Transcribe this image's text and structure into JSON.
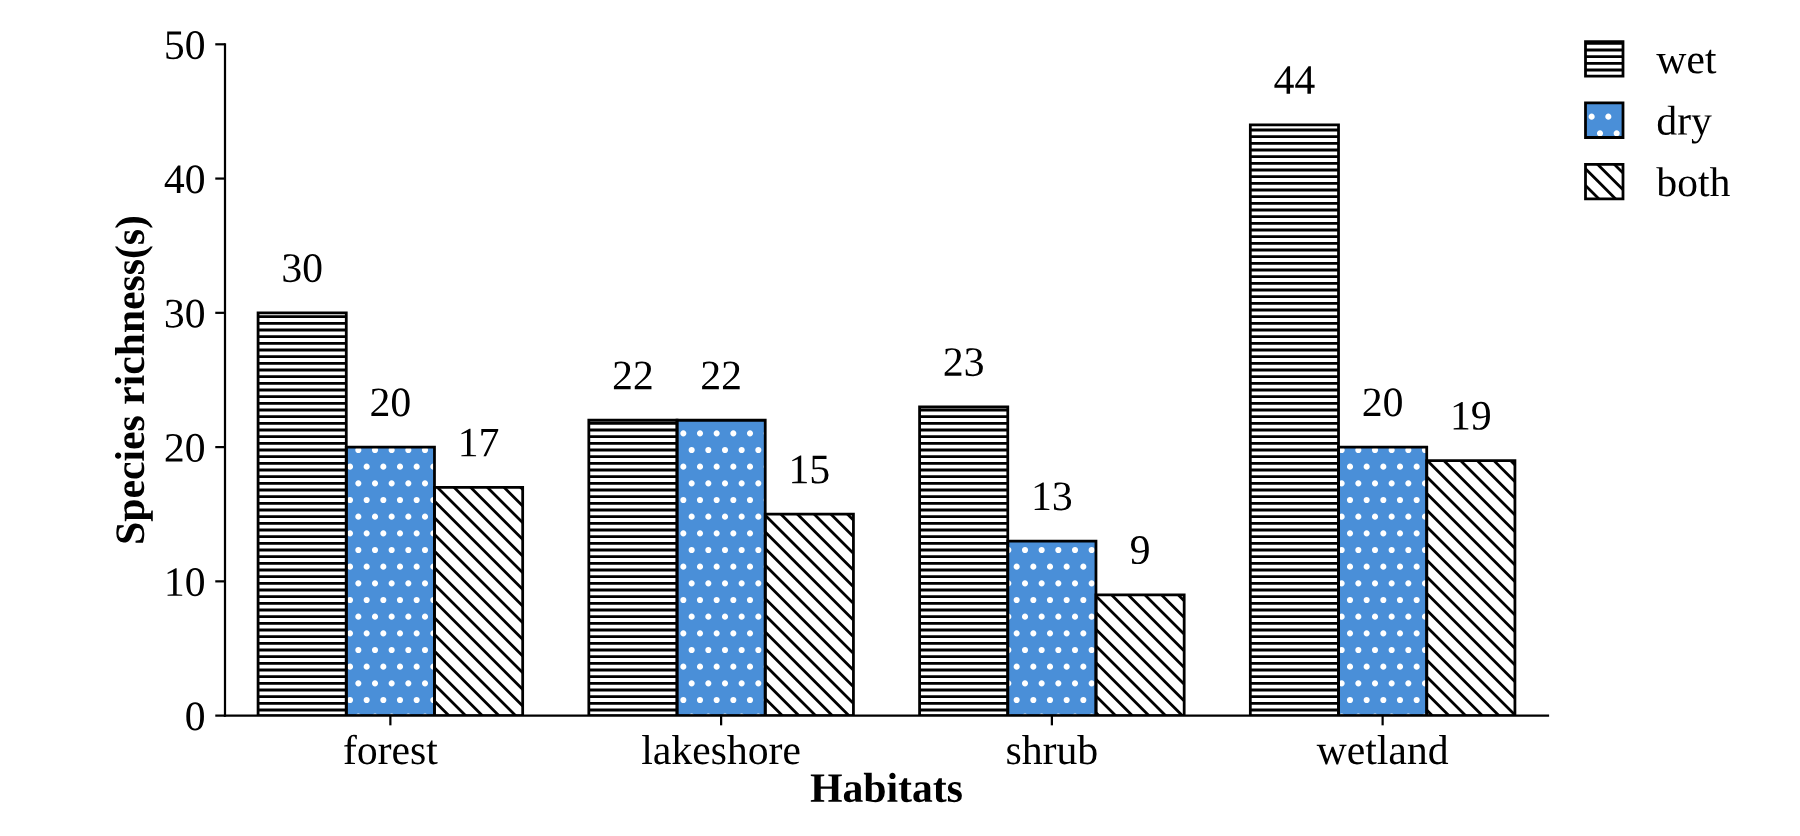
{
  "chart_data": {
    "type": "bar",
    "xlabel": "Habitats",
    "ylabel": "Species richness(s)",
    "categories": [
      "forest",
      "lakeshore",
      "shrub",
      "wetland"
    ],
    "series": [
      {
        "name": "wet",
        "color": "#ffffff",
        "values": [
          30,
          22,
          23,
          44
        ]
      },
      {
        "name": "dry",
        "color": "#4a8fd8",
        "values": [
          20,
          22,
          13,
          20
        ]
      },
      {
        "name": "both",
        "color": "#ffffff",
        "values": [
          17,
          15,
          9,
          19
        ]
      }
    ],
    "ylim": [
      0,
      50
    ],
    "yticks": [
      0,
      10,
      20,
      30,
      40,
      50
    ],
    "grid": false,
    "legend": "top right",
    "data_labels": true
  }
}
